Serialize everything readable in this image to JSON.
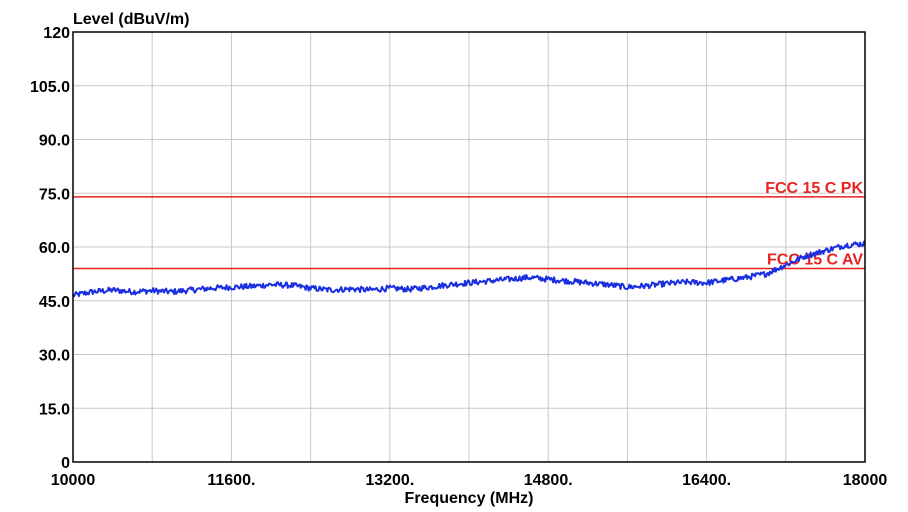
{
  "chart_data": {
    "type": "line",
    "xlabel": "Frequency (MHz)",
    "ylabel": "Level (dBuV/m)",
    "xlim": [
      10000,
      18000
    ],
    "ylim": [
      0,
      120
    ],
    "grid": true,
    "x_ticks": [
      {
        "value": 10000,
        "label": "10000"
      },
      {
        "value": 10800,
        "label": ""
      },
      {
        "value": 11600,
        "label": "11600."
      },
      {
        "value": 12400,
        "label": ""
      },
      {
        "value": 13200,
        "label": "13200."
      },
      {
        "value": 14000,
        "label": ""
      },
      {
        "value": 14800,
        "label": "14800."
      },
      {
        "value": 15600,
        "label": ""
      },
      {
        "value": 16400,
        "label": "16400."
      },
      {
        "value": 17200,
        "label": ""
      },
      {
        "value": 18000,
        "label": "18000"
      }
    ],
    "y_ticks": [
      {
        "value": 0,
        "label": "0"
      },
      {
        "value": 15,
        "label": "15.0"
      },
      {
        "value": 30,
        "label": "30.0"
      },
      {
        "value": 45,
        "label": "45.0"
      },
      {
        "value": 60,
        "label": "60.0"
      },
      {
        "value": 75,
        "label": "75.0"
      },
      {
        "value": 90,
        "label": "90.0"
      },
      {
        "value": 105,
        "label": "105.0"
      },
      {
        "value": 120,
        "label": "120"
      }
    ],
    "limits": [
      {
        "name": "FCC 15 C PK",
        "value": 74,
        "color": "#e8231f"
      },
      {
        "name": "FCC 15 C AV",
        "value": 54,
        "color": "#e8231f"
      }
    ],
    "series": [
      {
        "color": "#1a2fe0",
        "x": [
          10000,
          10200,
          10400,
          10600,
          10800,
          11000,
          11200,
          11400,
          11600,
          11800,
          12000,
          12200,
          12400,
          12600,
          12800,
          13000,
          13200,
          13400,
          13600,
          13800,
          14000,
          14200,
          14400,
          14600,
          14800,
          15000,
          15200,
          15400,
          15600,
          15800,
          16000,
          16200,
          16400,
          16600,
          16800,
          17000,
          17200,
          17400,
          17600,
          17800,
          18000
        ],
        "y": [
          46.5,
          47.5,
          48.0,
          47.5,
          47.8,
          47.5,
          48.0,
          48.5,
          48.8,
          49.0,
          49.5,
          49.3,
          48.5,
          48.0,
          48.3,
          48.0,
          48.5,
          48.2,
          48.8,
          49.5,
          50.0,
          50.5,
          51.0,
          51.5,
          51.0,
          50.5,
          50.0,
          49.5,
          48.8,
          49.2,
          49.8,
          50.2,
          50.0,
          50.8,
          51.5,
          52.5,
          55.0,
          57.5,
          59.0,
          60.5,
          61.0
        ]
      }
    ]
  }
}
